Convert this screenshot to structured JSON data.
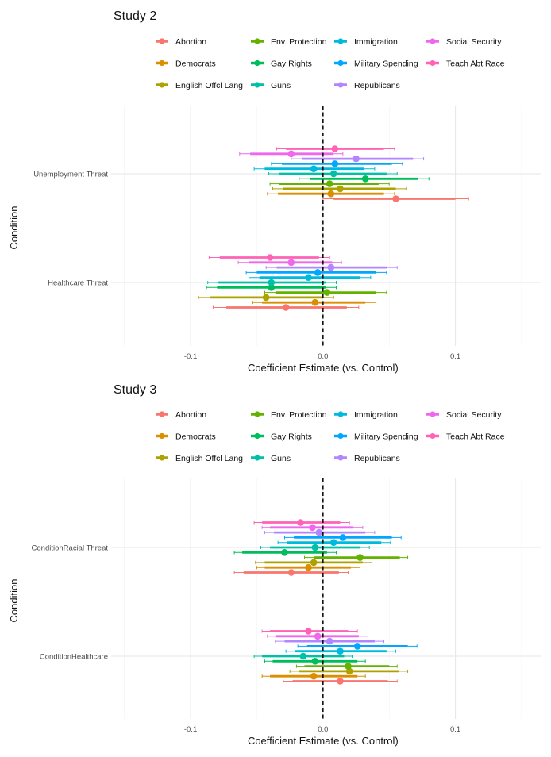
{
  "chart_data": [
    {
      "type": "forest",
      "title": "Study 2",
      "xlabel": "Coefficient Estimate (vs. Control)",
      "ylabel": "Condition",
      "xlim": [
        -0.16,
        0.165
      ],
      "x_ticks": [
        -0.1,
        0.0,
        0.1
      ],
      "x_tick_labels": [
        "-0.1",
        "0.0",
        "0.1"
      ],
      "reference_line": 0,
      "grid": true,
      "conditions": [
        "Unemployment Threat",
        "Healthcare Threat"
      ],
      "series": [
        {
          "name": "Abortion",
          "color": "#F8766D",
          "estimates": [
            0.055,
            -0.028
          ],
          "ci90": [
            [
              0.008,
              0.1
            ],
            [
              -0.073,
              0.018
            ]
          ],
          "ci95": [
            [
              0.0,
              0.11
            ],
            [
              -0.083,
              0.027
            ]
          ]
        },
        {
          "name": "Democrats",
          "color": "#DB8E00",
          "estimates": [
            0.006,
            -0.006
          ],
          "ci90": [
            [
              -0.034,
              0.046
            ],
            [
              -0.046,
              0.032
            ]
          ],
          "ci95": [
            [
              -0.042,
              0.054
            ],
            [
              -0.053,
              0.04
            ]
          ]
        },
        {
          "name": "English Offcl Lang",
          "color": "#AEA200",
          "estimates": [
            0.013,
            -0.043
          ],
          "ci90": [
            [
              -0.03,
              0.055
            ],
            [
              -0.085,
              0.0
            ]
          ],
          "ci95": [
            [
              -0.038,
              0.063
            ],
            [
              -0.094,
              0.008
            ]
          ]
        },
        {
          "name": "Env. Protection",
          "color": "#64B200",
          "estimates": [
            0.005,
            0.003
          ],
          "ci90": [
            [
              -0.033,
              0.042
            ],
            [
              -0.036,
              0.04
            ]
          ],
          "ci95": [
            [
              -0.04,
              0.05
            ],
            [
              -0.044,
              0.048
            ]
          ]
        },
        {
          "name": "Gay Rights",
          "color": "#00BD5C",
          "estimates": [
            0.032,
            -0.039
          ],
          "ci90": [
            [
              -0.01,
              0.072
            ],
            [
              -0.08,
              0.002
            ]
          ],
          "ci95": [
            [
              -0.018,
              0.08
            ],
            [
              -0.088,
              0.01
            ]
          ]
        },
        {
          "name": "Guns",
          "color": "#00C1A7",
          "estimates": [
            0.008,
            -0.039
          ],
          "ci90": [
            [
              -0.033,
              0.048
            ],
            [
              -0.079,
              0.002
            ]
          ],
          "ci95": [
            [
              -0.041,
              0.056
            ],
            [
              -0.087,
              0.01
            ]
          ]
        },
        {
          "name": "Immigration",
          "color": "#00BADE",
          "estimates": [
            -0.007,
            -0.011
          ],
          "ci90": [
            [
              -0.044,
              0.031
            ],
            [
              -0.048,
              0.028
            ]
          ],
          "ci95": [
            [
              -0.052,
              0.039
            ],
            [
              -0.056,
              0.036
            ]
          ]
        },
        {
          "name": "Military Spending",
          "color": "#00A6FF",
          "estimates": [
            0.009,
            -0.004
          ],
          "ci90": [
            [
              -0.031,
              0.052
            ],
            [
              -0.05,
              0.04
            ]
          ],
          "ci95": [
            [
              -0.039,
              0.06
            ],
            [
              -0.058,
              0.048
            ]
          ]
        },
        {
          "name": "Republicans",
          "color": "#B385FF",
          "estimates": [
            0.025,
            0.006
          ],
          "ci90": [
            [
              -0.016,
              0.068
            ],
            [
              -0.035,
              0.048
            ]
          ],
          "ci95": [
            [
              -0.024,
              0.076
            ],
            [
              -0.043,
              0.056
            ]
          ]
        },
        {
          "name": "Social Security",
          "color": "#EF67EB",
          "estimates": [
            -0.024,
            -0.024
          ],
          "ci90": [
            [
              -0.055,
              0.008
            ],
            [
              -0.056,
              0.007
            ]
          ],
          "ci95": [
            [
              -0.063,
              0.015
            ],
            [
              -0.064,
              0.014
            ]
          ]
        },
        {
          "name": "Teach Abt Race",
          "color": "#FF63B6",
          "estimates": [
            0.009,
            -0.04
          ],
          "ci90": [
            [
              -0.028,
              0.046
            ],
            [
              -0.078,
              -0.003
            ]
          ],
          "ci95": [
            [
              -0.035,
              0.054
            ],
            [
              -0.086,
              0.005
            ]
          ]
        }
      ]
    },
    {
      "type": "forest",
      "title": "Study 3",
      "xlabel": "Coefficient Estimate (vs. Control)",
      "ylabel": "Condition",
      "xlim": [
        -0.16,
        0.165
      ],
      "x_ticks": [
        -0.1,
        0.0,
        0.1
      ],
      "x_tick_labels": [
        "-0.1",
        "0.0",
        "0.1"
      ],
      "reference_line": 0,
      "grid": true,
      "conditions": [
        "ConditionRacial Threat",
        "ConditionHealthcare"
      ],
      "series": [
        {
          "name": "Abortion",
          "color": "#F8766D",
          "estimates": [
            -0.024,
            0.013
          ],
          "ci90": [
            [
              -0.06,
              0.012
            ],
            [
              -0.023,
              0.049
            ]
          ],
          "ci95": [
            [
              -0.067,
              0.019
            ],
            [
              -0.03,
              0.056
            ]
          ]
        },
        {
          "name": "Democrats",
          "color": "#DB8E00",
          "estimates": [
            -0.011,
            -0.007
          ],
          "ci90": [
            [
              -0.044,
              0.021
            ],
            [
              -0.04,
              0.026
            ]
          ],
          "ci95": [
            [
              -0.05,
              0.028
            ],
            [
              -0.046,
              0.032
            ]
          ]
        },
        {
          "name": "English Offcl Lang",
          "color": "#AEA200",
          "estimates": [
            -0.007,
            0.02
          ],
          "ci90": [
            [
              -0.044,
              0.03
            ],
            [
              -0.018,
              0.057
            ]
          ],
          "ci95": [
            [
              -0.051,
              0.037
            ],
            [
              -0.025,
              0.064
            ]
          ]
        },
        {
          "name": "Env. Protection",
          "color": "#64B200",
          "estimates": [
            0.028,
            0.019
          ],
          "ci90": [
            [
              -0.007,
              0.058
            ],
            [
              -0.014,
              0.05
            ]
          ],
          "ci95": [
            [
              -0.014,
              0.064
            ],
            [
              -0.02,
              0.056
            ]
          ]
        },
        {
          "name": "Gay Rights",
          "color": "#00BD5C",
          "estimates": [
            -0.029,
            -0.006
          ],
          "ci90": [
            [
              -0.061,
              0.003
            ],
            [
              -0.038,
              0.026
            ]
          ],
          "ci95": [
            [
              -0.067,
              0.01
            ],
            [
              -0.044,
              0.032
            ]
          ]
        },
        {
          "name": "Guns",
          "color": "#00C1A7",
          "estimates": [
            -0.006,
            -0.015
          ],
          "ci90": [
            [
              -0.04,
              0.028
            ],
            [
              -0.046,
              0.016
            ]
          ],
          "ci95": [
            [
              -0.047,
              0.035
            ],
            [
              -0.052,
              0.022
            ]
          ]
        },
        {
          "name": "Immigration",
          "color": "#00BADE",
          "estimates": [
            0.008,
            0.013
          ],
          "ci90": [
            [
              -0.027,
              0.044
            ],
            [
              -0.021,
              0.048
            ]
          ],
          "ci95": [
            [
              -0.034,
              0.051
            ],
            [
              -0.028,
              0.055
            ]
          ]
        },
        {
          "name": "Military Spending",
          "color": "#00A6FF",
          "estimates": [
            0.015,
            0.026
          ],
          "ci90": [
            [
              -0.022,
              0.052
            ],
            [
              -0.012,
              0.064
            ]
          ],
          "ci95": [
            [
              -0.029,
              0.059
            ],
            [
              -0.019,
              0.071
            ]
          ]
        },
        {
          "name": "Republicans",
          "color": "#B385FF",
          "estimates": [
            -0.003,
            0.005
          ],
          "ci90": [
            [
              -0.037,
              0.032
            ],
            [
              -0.029,
              0.039
            ]
          ],
          "ci95": [
            [
              -0.044,
              0.039
            ],
            [
              -0.036,
              0.046
            ]
          ]
        },
        {
          "name": "Social Security",
          "color": "#EF67EB",
          "estimates": [
            -0.008,
            -0.004
          ],
          "ci90": [
            [
              -0.04,
              0.023
            ],
            [
              -0.036,
              0.027
            ]
          ],
          "ci95": [
            [
              -0.046,
              0.03
            ],
            [
              -0.042,
              0.034
            ]
          ]
        },
        {
          "name": "Teach Abt Race",
          "color": "#FF63B6",
          "estimates": [
            -0.017,
            -0.011
          ],
          "ci90": [
            [
              -0.046,
              0.013
            ],
            [
              -0.04,
              0.019
            ]
          ],
          "ci95": [
            [
              -0.052,
              0.02
            ],
            [
              -0.046,
              0.026
            ]
          ]
        }
      ]
    }
  ]
}
